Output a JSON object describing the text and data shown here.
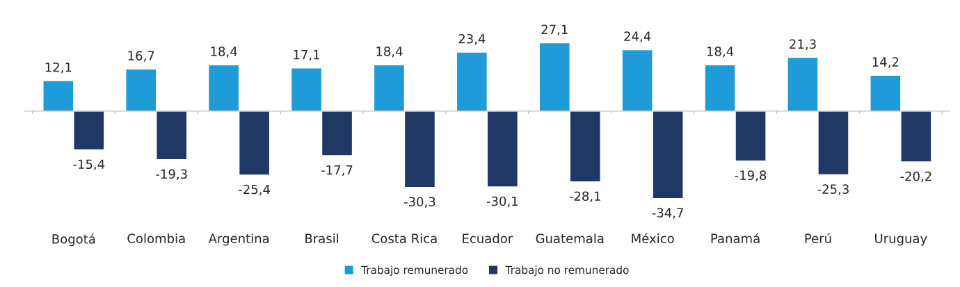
{
  "chart_data": {
    "type": "bar",
    "categories": [
      "Bogotá",
      "Colombia",
      "Argentina",
      "Brasil",
      "Costa Rica",
      "Ecuador",
      "Guatemala",
      "México",
      "Panamá",
      "Perú",
      "Uruguay"
    ],
    "series": [
      {
        "name": "Trabajo remunerado",
        "color": "#1f9bd7",
        "values": [
          12.1,
          16.7,
          18.4,
          17.1,
          18.4,
          23.4,
          27.1,
          24.4,
          18.4,
          21.3,
          14.2
        ],
        "value_labels": [
          "12,1",
          "16,7",
          "18,4",
          "17,1",
          "18,4",
          "23,4",
          "27,1",
          "24,4",
          "18,4",
          "21,3",
          "14,2"
        ]
      },
      {
        "name": "Trabajo no remunerado",
        "color": "#1f3864",
        "values": [
          -15.4,
          -19.3,
          -25.4,
          -17.7,
          -30.3,
          -30.1,
          -28.1,
          -34.7,
          -19.8,
          -25.3,
          -20.2
        ],
        "value_labels": [
          "-15,4",
          "-19,3",
          "-25,4",
          "-17,7",
          "-30,3",
          "-30,1",
          "-28,1",
          "-34,7",
          "-19,8",
          "-25,3",
          "-20,2"
        ]
      }
    ],
    "legend": "bottom",
    "grid": false,
    "tick_labels": "x"
  }
}
